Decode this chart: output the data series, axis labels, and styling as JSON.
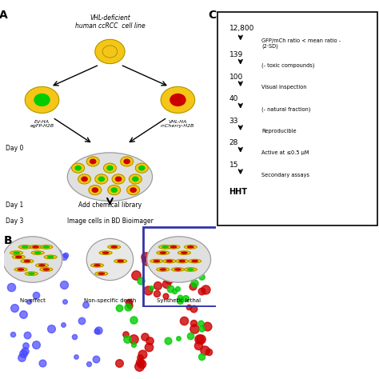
{
  "panel_A_label": "A",
  "panel_B_label": "B",
  "panel_C_label": "C",
  "title_text": "VHL-deficient\nhuman ccRCC cell line",
  "ev_ha_label": "EV-HA\negFP-H2B",
  "vhl_ha_label": "VHL-HA\nmCherry-H2B",
  "day0_label": "Day 0",
  "day1_label": "Day 1",
  "day3_label": "Day 3",
  "add_lib_label": "Add chemical library",
  "image_cells_label": "Image cells in BD Bioimager",
  "no_effect_label": "No effect",
  "nonspecific_label": "Non-specific death",
  "synthetic_label": "Synthetic lethal",
  "flowchart_items": [
    {
      "number": "12,800",
      "arrow_text": "GFP/mCh ratio < mean ratio -\n(2·SD)"
    },
    {
      "number": "139",
      "arrow_text": "(- toxic compounds)"
    },
    {
      "number": "100",
      "arrow_text": "Visual inspection"
    },
    {
      "number": "40",
      "arrow_text": "(- natural fraction)"
    },
    {
      "number": "33",
      "arrow_text": "Reproducible"
    },
    {
      "number": "28",
      "arrow_text": "Active at ≤0.5 μM"
    },
    {
      "number": "15",
      "arrow_text": "Secondary assays"
    },
    {
      "number": "HHT",
      "arrow_text": ""
    }
  ],
  "bg_color": "#ffffff",
  "cell_body_color": "#f5c518",
  "gfp_color": "#00cc00",
  "mcherry_color": "#cc0000",
  "plate_color": "#e0e0e0",
  "arrow_color": "#000000",
  "blue_box_color": "#3333aa",
  "box_bg": "#ffffff"
}
